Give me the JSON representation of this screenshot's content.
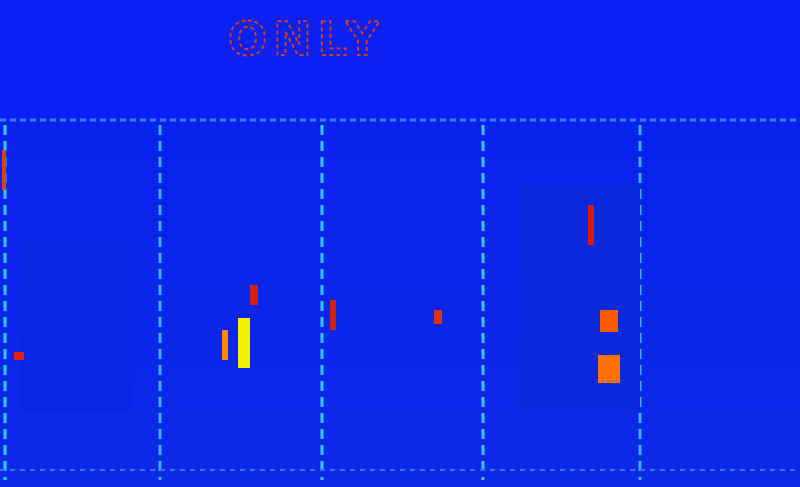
{
  "sign": {
    "text": "ONLY"
  }
}
